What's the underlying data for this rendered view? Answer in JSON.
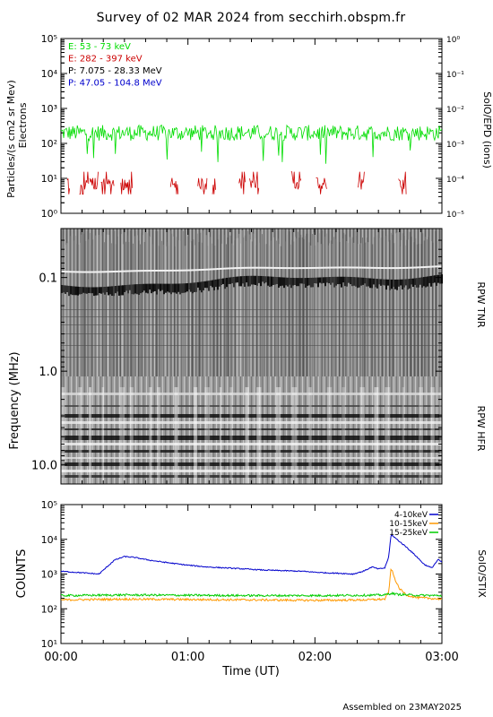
{
  "title": "Survey of 02 MAR 2024 from secchirh.obspm.fr",
  "footer": "Assembled on 23MAY2025",
  "chart_data": [
    {
      "type": "line",
      "panel": "epd",
      "ylabel_left": "Particles/(s cm2 sr Mev)",
      "ylabel_left2": "Electrons",
      "ylabel_right": "SolO/EPD (ions)",
      "yscale": "log",
      "ylim": [
        1,
        100000
      ],
      "yticks": [
        "10⁰",
        "10¹",
        "10²",
        "10³",
        "10⁴",
        "10⁵"
      ],
      "ylim_right": [
        1e-05,
        1
      ],
      "yticks_right": [
        "10⁻⁵",
        "10⁻⁴",
        "10⁻³",
        "10⁻²",
        "10⁻¹",
        "10⁰"
      ],
      "xlim_hours": [
        0,
        3
      ],
      "legend_position": "top-left",
      "series": [
        {
          "name": "E: 53 - 73 keV",
          "color": "#00dd00",
          "typical": 200,
          "style": "noisy"
        },
        {
          "name": "E: 282 - 397 keV",
          "color": "#cc0000",
          "typical": 7,
          "style": "sparse"
        },
        {
          "name": "P: 7.075 - 28.33 MeV",
          "color": "#000000",
          "typical": null,
          "style": "none"
        },
        {
          "name": "P: 47.05 - 104.8 MeV",
          "color": "#0000cc",
          "typical": null,
          "style": "none"
        }
      ]
    },
    {
      "type": "heatmap",
      "panel": "rpw",
      "ylabel_left": "Frequency (MHz)",
      "yscale": "log",
      "ylim": [
        0.03,
        16
      ],
      "yticks": [
        "0.1",
        "1.0",
        "10.0"
      ],
      "labels_right": [
        "RPW TNR",
        "RPW HFR"
      ],
      "xlim_hours": [
        0,
        3
      ],
      "colormap": "grayscale"
    },
    {
      "type": "line",
      "panel": "stix",
      "ylabel_left": "COUNTS",
      "ylabel_right": "SolO/STIX",
      "yscale": "log",
      "ylim": [
        10,
        100000
      ],
      "yticks": [
        "10¹",
        "10²",
        "10³",
        "10⁴",
        "10⁵"
      ],
      "xlabel": "Time (UT)",
      "xticks": [
        "00:00",
        "01:00",
        "02:00",
        "03:00"
      ],
      "xlim_hours": [
        0,
        3
      ],
      "legend_position": "top-right",
      "series": [
        {
          "name": "4-10keV",
          "color": "#0000cc",
          "x": [
            0,
            0.15,
            0.3,
            0.42,
            0.5,
            0.58,
            0.7,
            0.85,
            1.0,
            1.15,
            1.3,
            1.45,
            1.6,
            1.75,
            1.9,
            2.05,
            2.2,
            2.3,
            2.38,
            2.45,
            2.5,
            2.55,
            2.58,
            2.6,
            2.62,
            2.66,
            2.72,
            2.8,
            2.86,
            2.92,
            2.97,
            3.0
          ],
          "values": [
            1200,
            1100,
            1000,
            2500,
            3200,
            3000,
            2500,
            2100,
            1800,
            1600,
            1500,
            1400,
            1300,
            1250,
            1200,
            1100,
            1050,
            1000,
            1200,
            1600,
            1400,
            1500,
            3000,
            14000,
            12000,
            9000,
            6000,
            3200,
            1900,
            1500,
            2600,
            2200
          ]
        },
        {
          "name": "10-15keV",
          "color": "#ff9900",
          "x": [
            0,
            0.5,
            1.0,
            1.5,
            2.0,
            2.4,
            2.55,
            2.58,
            2.6,
            2.62,
            2.66,
            2.72,
            2.8,
            2.9,
            3.0
          ],
          "values": [
            180,
            190,
            185,
            180,
            175,
            180,
            190,
            300,
            1500,
            900,
            400,
            250,
            210,
            200,
            190
          ]
        },
        {
          "name": "15-25keV",
          "color": "#00cc00",
          "x": [
            0,
            0.5,
            1.0,
            1.5,
            2.0,
            2.4,
            2.55,
            2.6,
            2.65,
            2.8,
            3.0
          ],
          "values": [
            240,
            250,
            245,
            240,
            240,
            245,
            250,
            280,
            260,
            245,
            240
          ]
        }
      ]
    }
  ]
}
